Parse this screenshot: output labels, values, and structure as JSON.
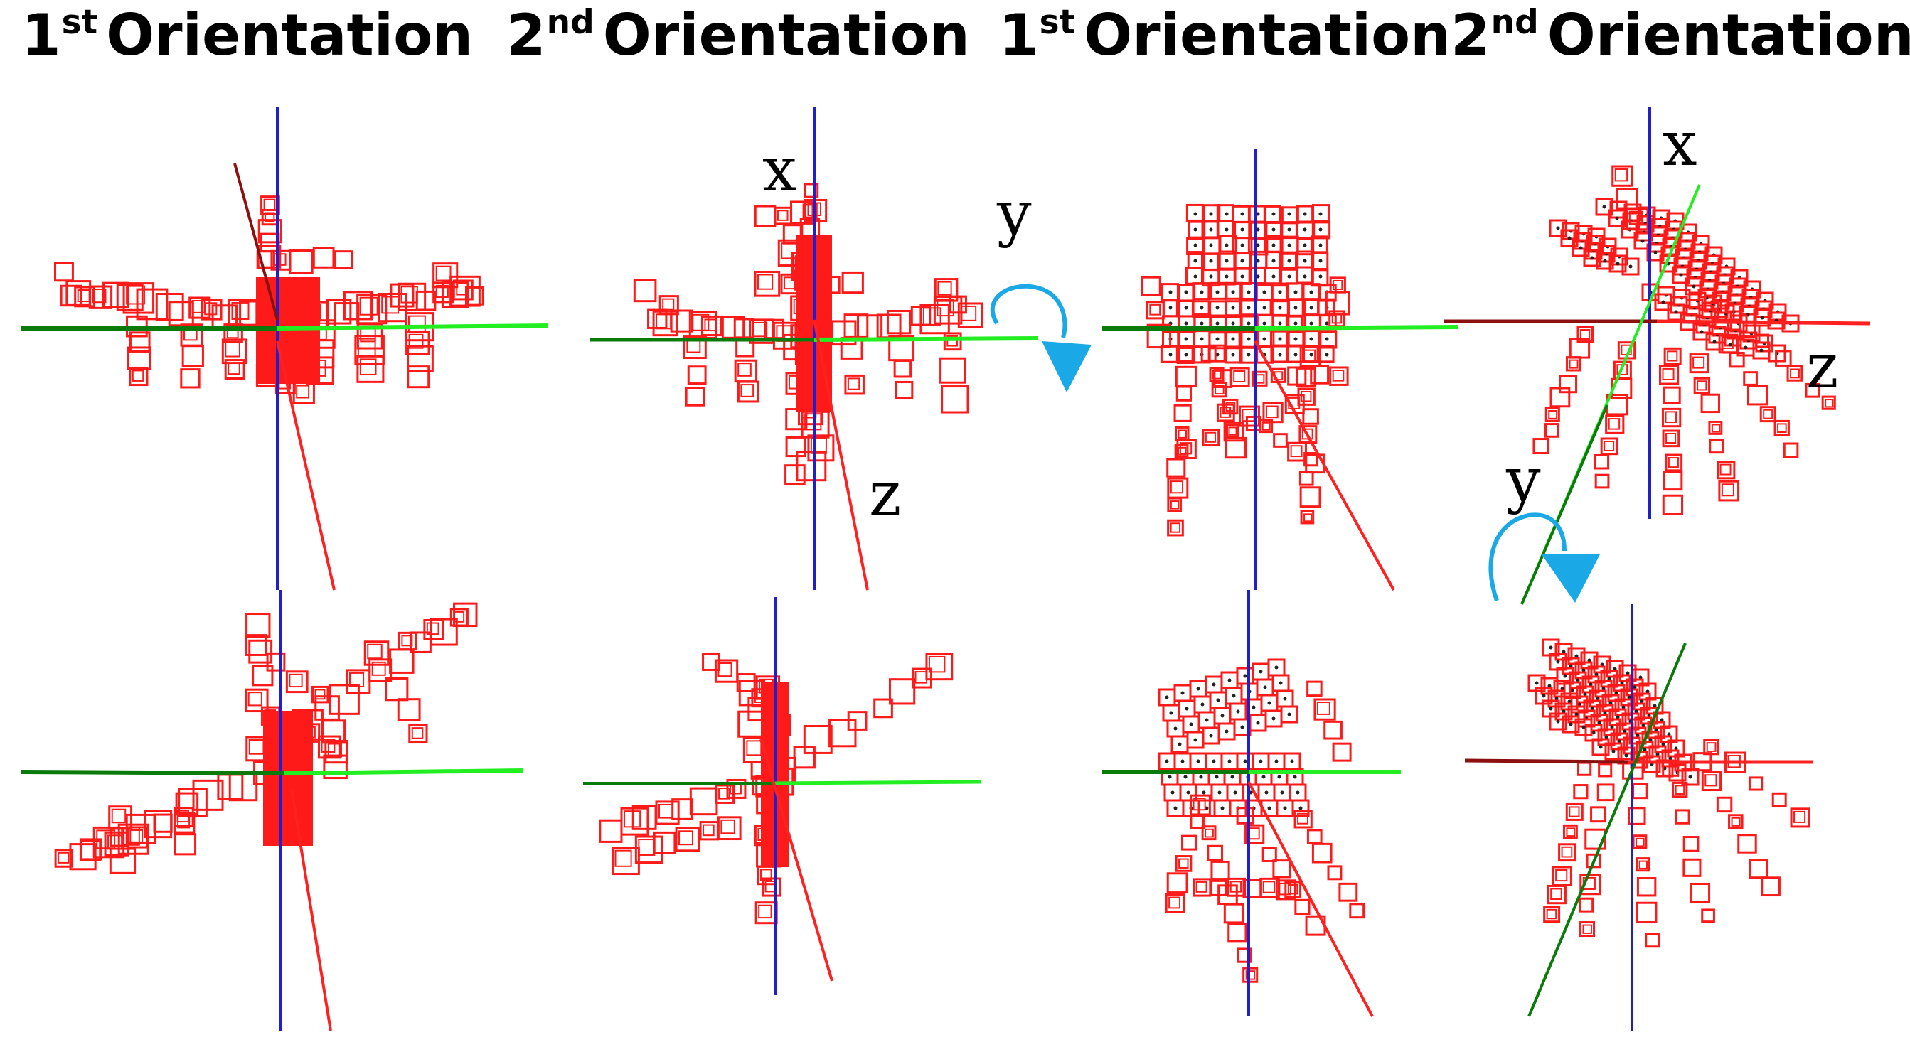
{
  "headers": [
    {
      "num": "1",
      "ord": "st",
      "word": "Orientation"
    },
    {
      "num": "2",
      "ord": "nd",
      "word": "Orientation"
    },
    {
      "num": "1",
      "ord": "st",
      "word": "Orientation"
    },
    {
      "num": "2",
      "ord": "nd",
      "word": "Orientation"
    }
  ],
  "axis_labels": {
    "x": "x",
    "y": "y",
    "z": "z"
  },
  "colors": {
    "voxel": "#ff1a1a",
    "voxel_dark": "#e00000",
    "axis_blue": "#1f1fd0",
    "axis_green_light": "#22ee22",
    "axis_green_dark": "#0a7a0a",
    "axis_red": "#ff2020",
    "axis_darkred": "#8b1010",
    "rotation_arrow": "#1aa9e6"
  },
  "panels": [
    "airplane-1st-top",
    "airplane-2nd-top",
    "chair-1st-top",
    "chair-2nd-top",
    "airplane-1st-bottom",
    "airplane-2nd-bottom",
    "chair-1st-bottom",
    "chair-2nd-bottom"
  ]
}
